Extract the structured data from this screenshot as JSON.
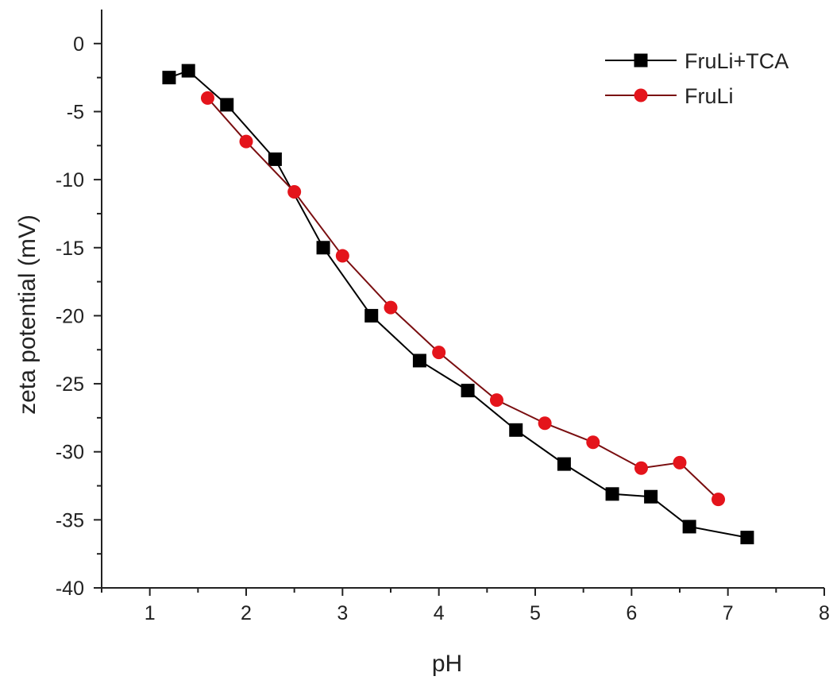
{
  "chart_data": {
    "type": "line",
    "xlabel": "pH",
    "ylabel": "zeta potential (mV)",
    "xlim": [
      0.5,
      8
    ],
    "ylim": [
      -40,
      2.5
    ],
    "xticks": [
      1,
      2,
      3,
      4,
      5,
      6,
      7,
      8
    ],
    "yticks": [
      0,
      -5,
      -10,
      -15,
      -20,
      -25,
      -30,
      -35,
      -40
    ],
    "grid": false,
    "legend_position": "top-right",
    "series": [
      {
        "name": "FruLi+TCA",
        "color": "#000000",
        "marker": "square",
        "x": [
          1.2,
          1.4,
          1.8,
          2.3,
          2.8,
          3.3,
          3.8,
          4.3,
          4.8,
          5.3,
          5.8,
          6.2,
          6.6,
          7.2
        ],
        "y": [
          -2.5,
          -2.0,
          -4.5,
          -8.5,
          -15.0,
          -20.0,
          -23.3,
          -25.5,
          -28.4,
          -30.9,
          -33.1,
          -33.3,
          -35.5,
          -36.3
        ]
      },
      {
        "name": "FruLi",
        "color": "#e4141b",
        "line_color": "#7a0e10",
        "marker": "circle",
        "x": [
          1.6,
          2.0,
          2.5,
          3.0,
          3.5,
          4.0,
          4.6,
          5.1,
          5.6,
          6.1,
          6.5,
          6.9
        ],
        "y": [
          -4.0,
          -7.2,
          -10.9,
          -15.6,
          -19.4,
          -22.7,
          -26.2,
          -27.9,
          -29.3,
          -31.2,
          -30.8,
          -33.5
        ]
      }
    ]
  }
}
